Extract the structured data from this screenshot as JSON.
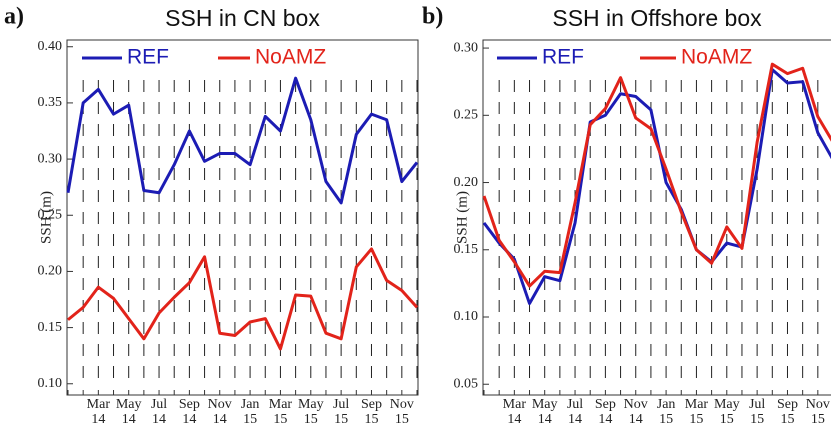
{
  "chart_data": [
    {
      "type": "line",
      "panel_label": "a)",
      "title": "SSH in CN box",
      "y_label": "SSH  (m)",
      "categories": [
        null,
        null,
        "Mar 14",
        null,
        "May 14",
        null,
        "Jul 14",
        null,
        "Sep 14",
        null,
        "Nov 14",
        null,
        "Jan 15",
        null,
        "Mar 15",
        null,
        "May 15",
        null,
        "Jul 15",
        null,
        "Sep 15",
        null,
        "Nov 15",
        null
      ],
      "ylim": [
        0.09,
        0.406
      ],
      "yticks": [
        {
          "value": 0.1,
          "label": "0.10"
        },
        {
          "value": 0.15,
          "label": "0.15"
        },
        {
          "value": 0.2,
          "label": "0.20"
        },
        {
          "value": 0.25,
          "label": "0.25"
        },
        {
          "value": 0.3,
          "label": "0.30"
        },
        {
          "value": 0.35,
          "label": "0.35"
        },
        {
          "value": 0.4,
          "label": "0.40"
        }
      ],
      "series": [
        {
          "name": "REF",
          "color": "#1c1cb4",
          "values": [
            0.27,
            0.35,
            0.362,
            0.34,
            0.348,
            0.272,
            0.27,
            0.295,
            0.325,
            0.298,
            0.305,
            0.305,
            0.295,
            0.338,
            0.325,
            0.372,
            0.335,
            0.28,
            0.261,
            0.322,
            0.34,
            0.335,
            0.28,
            0.297
          ]
        },
        {
          "name": "NoAMZ",
          "color": "#e2231a",
          "values": [
            0.157,
            0.168,
            0.186,
            0.176,
            0.158,
            0.14,
            0.163,
            0.177,
            0.19,
            0.213,
            0.145,
            0.143,
            0.155,
            0.158,
            0.131,
            0.179,
            0.178,
            0.145,
            0.14,
            0.204,
            0.22,
            0.192,
            0.183,
            0.168
          ]
        }
      ]
    },
    {
      "type": "line",
      "panel_label": "b)",
      "title": "SSH in Offshore box",
      "y_label": "SSH  (m)",
      "categories": [
        null,
        null,
        "Mar 14",
        null,
        "May 14",
        null,
        "Jul 14",
        null,
        "Sep 14",
        null,
        "Nov 14",
        null,
        "Jan 15",
        null,
        "Mar 15",
        null,
        "May 15",
        null,
        "Jul 15",
        null,
        "Sep 15",
        null,
        "Nov 15",
        null
      ],
      "ylim": [
        0.042,
        0.306
      ],
      "yticks": [
        {
          "value": 0.05,
          "label": "0.05"
        },
        {
          "value": 0.1,
          "label": "0.10"
        },
        {
          "value": 0.15,
          "label": "0.15"
        },
        {
          "value": 0.2,
          "label": "0.20"
        },
        {
          "value": 0.25,
          "label": "0.25"
        },
        {
          "value": 0.3,
          "label": "0.30"
        }
      ],
      "series": [
        {
          "name": "REF",
          "color": "#1c1cb4",
          "values": [
            0.17,
            0.155,
            0.143,
            0.11,
            0.13,
            0.127,
            0.17,
            0.245,
            0.25,
            0.266,
            0.264,
            0.254,
            0.2,
            0.18,
            0.15,
            0.141,
            0.155,
            0.152,
            0.21,
            0.284,
            0.274,
            0.275,
            0.237,
            0.217
          ]
        },
        {
          "name": "NoAMZ",
          "color": "#e2231a",
          "values": [
            0.19,
            0.157,
            0.141,
            0.123,
            0.134,
            0.133,
            0.185,
            0.243,
            0.255,
            0.278,
            0.248,
            0.24,
            0.21,
            0.178,
            0.15,
            0.14,
            0.167,
            0.151,
            0.23,
            0.288,
            0.281,
            0.285,
            0.249,
            0.23
          ]
        }
      ]
    }
  ]
}
